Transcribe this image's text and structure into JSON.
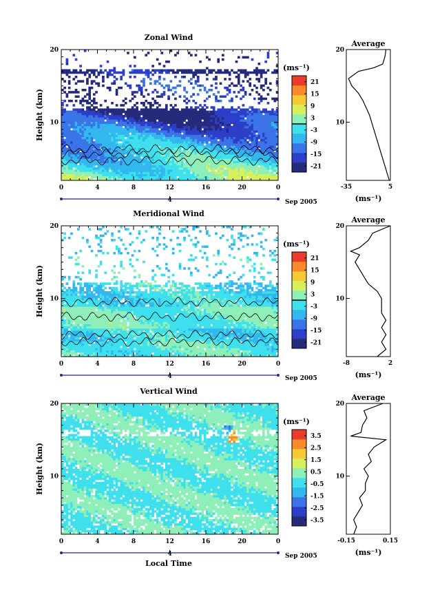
{
  "figure": {
    "xlabel": "Local Time",
    "date_label": "Sep 2005",
    "day_label": "4",
    "ylabel": "Height (km)",
    "unit": "(ms⁻¹)",
    "avg_title": "Average"
  },
  "chart_data": [
    {
      "type": "heatmap",
      "title": "Zonal Wind",
      "xlabel": "Local Time",
      "ylabel": "Height (km)",
      "x_ticks": [
        "0",
        "4",
        "8",
        "12",
        "16",
        "20",
        "0"
      ],
      "y_ticks": [
        "10",
        "20"
      ],
      "xlim": [
        0,
        24
      ],
      "ylim": [
        2,
        20
      ],
      "colorbar": {
        "label": "(ms⁻¹)",
        "ticks": [
          "21",
          "15",
          "9",
          "3",
          "-3",
          "-9",
          "-15",
          "-21"
        ],
        "range": [
          -24,
          24
        ],
        "zero_line": 0
      },
      "profile": {
        "title": "Average",
        "xlabel": "(ms⁻¹)",
        "x_ticks": [
          "-35",
          "5"
        ],
        "xlim": [
          -35,
          5
        ],
        "y_ticks": [
          "10",
          "20"
        ],
        "ylim": [
          2,
          20
        ],
        "heights": [
          2,
          3,
          4,
          5,
          6,
          7,
          8,
          9,
          10,
          11,
          12,
          13,
          14,
          15,
          16,
          17,
          17.5,
          18,
          19,
          20
        ],
        "values": [
          4,
          2,
          0,
          -2,
          -4,
          -6,
          -8,
          -10,
          -12,
          -14,
          -17,
          -20,
          -24,
          -30,
          -33,
          -24,
          -10,
          -2,
          0,
          1
        ]
      }
    },
    {
      "type": "heatmap",
      "title": "Meridional Wind",
      "xlabel": "Local Time",
      "ylabel": "Height (km)",
      "x_ticks": [
        "0",
        "4",
        "8",
        "12",
        "16",
        "20",
        "0"
      ],
      "y_ticks": [
        "10",
        "20"
      ],
      "xlim": [
        0,
        24
      ],
      "ylim": [
        2,
        20
      ],
      "colorbar": {
        "label": "(ms⁻¹)",
        "ticks": [
          "21",
          "15",
          "9",
          "3",
          "-3",
          "-9",
          "-15",
          "-21"
        ],
        "range": [
          -24,
          24
        ],
        "zero_line": 0
      },
      "profile": {
        "title": "Average",
        "xlabel": "(ms⁻¹)",
        "x_ticks": [
          "-8",
          "2"
        ],
        "xlim": [
          -8,
          2
        ],
        "y_ticks": [
          "10",
          "20"
        ],
        "ylim": [
          2,
          20
        ],
        "heights": [
          2,
          3,
          4,
          5,
          6,
          7,
          8,
          9,
          10,
          11,
          12,
          13,
          14,
          15,
          16,
          16.5,
          17,
          18,
          19,
          20
        ],
        "values": [
          -1,
          1,
          0,
          1,
          0,
          1,
          0,
          0,
          0,
          -1,
          -3,
          -4,
          -5,
          -6,
          -5,
          -7,
          -5,
          -3,
          -2,
          2
        ]
      }
    },
    {
      "type": "heatmap",
      "title": "Vertical Wind",
      "xlabel": "Local Time",
      "ylabel": "Height (km)",
      "x_ticks": [
        "0",
        "4",
        "8",
        "12",
        "16",
        "20",
        "0"
      ],
      "y_ticks": [
        "10",
        "20"
      ],
      "xlim": [
        0,
        24
      ],
      "ylim": [
        2,
        20
      ],
      "colorbar": {
        "label": "(ms⁻¹)",
        "ticks": [
          "3.5",
          "2.5",
          "1.5",
          "0.5",
          "-0.5",
          "-1.5",
          "-2.5",
          "-3.5"
        ],
        "range": [
          -4,
          4
        ]
      },
      "profile": {
        "title": "Average",
        "xlabel": "(ms⁻¹)",
        "x_ticks": [
          "-0.15",
          "0.15"
        ],
        "xlim": [
          -0.15,
          0.15
        ],
        "y_ticks": [
          "10",
          "20"
        ],
        "ylim": [
          2,
          20
        ],
        "heights": [
          2,
          3,
          4,
          5,
          6,
          7,
          8,
          9,
          10,
          11,
          12,
          13,
          14,
          15,
          15.5,
          16,
          17,
          18,
          19,
          20
        ],
        "values": [
          -0.1,
          -0.08,
          -0.1,
          -0.07,
          -0.04,
          -0.06,
          -0.02,
          -0.02,
          0.0,
          -0.03,
          0.02,
          0.0,
          0.04,
          0.12,
          -0.12,
          -0.05,
          -0.04,
          -0.01,
          -0.03,
          0.1
        ]
      }
    }
  ]
}
